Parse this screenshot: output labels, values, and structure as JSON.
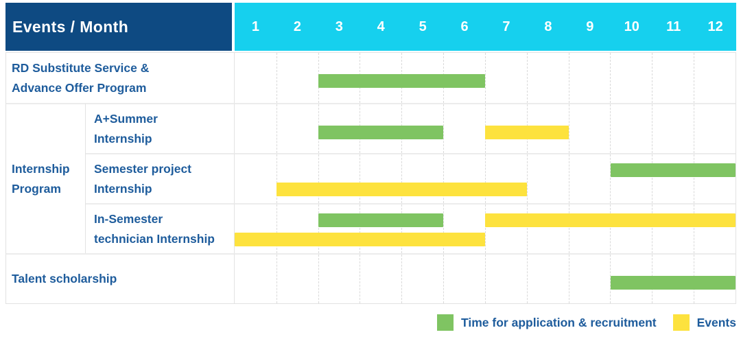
{
  "colors": {
    "header_navy": "#0e4a82",
    "header_cyan": "#16d0ee",
    "green": "#7fc462",
    "yellow": "#fde23e",
    "label_blue": "#1e5c9c"
  },
  "header": {
    "title": "Events / Month",
    "months": [
      "1",
      "2",
      "3",
      "4",
      "5",
      "6",
      "7",
      "8",
      "9",
      "10",
      "11",
      "12"
    ]
  },
  "group": {
    "label": "Internship\nProgram"
  },
  "rows": [
    {
      "label": "RD Substitute Service &\nAdvance Offer Program",
      "bars": [
        {
          "color": "green",
          "start": 3,
          "end": 6,
          "line": "center"
        }
      ]
    },
    {
      "label": "A+Summer\nInternship",
      "bars": [
        {
          "color": "green",
          "start": 3,
          "end": 5,
          "line": "center"
        },
        {
          "color": "yellow",
          "start": 7,
          "end": 8,
          "line": "center"
        }
      ]
    },
    {
      "label": "Semester project\nInternship",
      "bars": [
        {
          "color": "green",
          "start": 10,
          "end": 12,
          "line": "top"
        },
        {
          "color": "yellow",
          "start": 2,
          "end": 7,
          "line": "bottom"
        }
      ]
    },
    {
      "label": "In-Semester\ntechnician Internship",
      "bars": [
        {
          "color": "green",
          "start": 3,
          "end": 5,
          "line": "top"
        },
        {
          "color": "yellow",
          "start": 7,
          "end": 12,
          "line": "top"
        },
        {
          "color": "yellow",
          "start": 1,
          "end": 6,
          "line": "bottom"
        }
      ]
    },
    {
      "label": "Talent scholarship",
      "bars": [
        {
          "color": "green",
          "start": 10,
          "end": 12,
          "line": "center"
        }
      ]
    }
  ],
  "legend": [
    {
      "color": "green",
      "label": "Time for application & recruitment"
    },
    {
      "color": "yellow",
      "label": "Events"
    }
  ],
  "chart_data": {
    "type": "bar",
    "subtype": "gantt-timeline",
    "title": "Events / Month",
    "x": {
      "label": "Month",
      "ticks": [
        1,
        2,
        3,
        4,
        5,
        6,
        7,
        8,
        9,
        10,
        11,
        12
      ],
      "range": [
        1,
        12
      ]
    },
    "grid": true,
    "legend_position": "bottom-right",
    "series_legend": [
      "Time for application & recruitment",
      "Events"
    ],
    "rows": [
      {
        "category": "RD Substitute Service & Advance Offer Program",
        "group": null,
        "spans": [
          {
            "series": "Time for application & recruitment",
            "start_month": 3,
            "end_month": 6
          }
        ]
      },
      {
        "category": "A+Summer Internship",
        "group": "Internship Program",
        "spans": [
          {
            "series": "Time for application & recruitment",
            "start_month": 3,
            "end_month": 5
          },
          {
            "series": "Events",
            "start_month": 7,
            "end_month": 8
          }
        ]
      },
      {
        "category": "Semester project Internship",
        "group": "Internship Program",
        "spans": [
          {
            "series": "Time for application & recruitment",
            "start_month": 10,
            "end_month": 12
          },
          {
            "series": "Events",
            "start_month": 2,
            "end_month": 7
          }
        ]
      },
      {
        "category": "In-Semester technician Internship",
        "group": "Internship Program",
        "spans": [
          {
            "series": "Time for application & recruitment",
            "start_month": 3,
            "end_month": 5
          },
          {
            "series": "Events",
            "start_month": 7,
            "end_month": 12
          },
          {
            "series": "Events",
            "start_month": 1,
            "end_month": 6
          }
        ]
      },
      {
        "category": "Talent scholarship",
        "group": null,
        "spans": [
          {
            "series": "Time for application & recruitment",
            "start_month": 10,
            "end_month": 12
          }
        ]
      }
    ]
  }
}
